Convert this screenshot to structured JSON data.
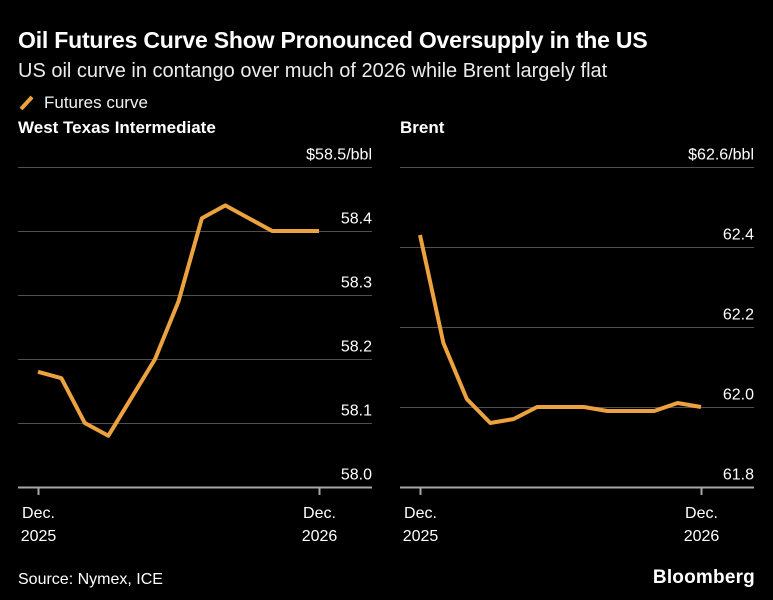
{
  "header": {
    "title": "Oil Futures Curve Show Pronounced Oversupply in the US",
    "subtitle": "US oil curve in contango over much of 2026 while Brent largely flat"
  },
  "legend": {
    "label": "Futures curve"
  },
  "footer": {
    "source": "Source: Nymex, ICE",
    "brand": "Bloomberg"
  },
  "colors": {
    "background": "#000000",
    "accent_orange": "#ECA23E",
    "gridline": "#4f4f4f",
    "axis_line": "#a8a8a8",
    "label_text": "#ffffff"
  },
  "chart_data": [
    {
      "type": "line",
      "title": "West Texas Intermediate",
      "unit_label": "$58.5/bbl",
      "ylim": [
        58.0,
        58.5
      ],
      "grid": "horizontal-only",
      "yticks": [
        {
          "value": 58.5,
          "label": "$58.5/bbl"
        },
        {
          "value": 58.4,
          "label": "58.4"
        },
        {
          "value": 58.3,
          "label": "58.3"
        },
        {
          "value": 58.2,
          "label": "58.2"
        },
        {
          "value": 58.1,
          "label": "58.1"
        },
        {
          "value": 58.0,
          "label": "58.0"
        }
      ],
      "x_ticks": [
        {
          "month_index": 0,
          "label_lines": [
            "Dec.",
            "2025"
          ]
        },
        {
          "month_index": 12,
          "label_lines": [
            "Dec.",
            "2026"
          ]
        }
      ],
      "series": [
        {
          "name": "Futures curve",
          "values": [
            58.18,
            58.17,
            58.1,
            58.08,
            58.14,
            58.2,
            58.29,
            58.42,
            58.44,
            58.42,
            58.4,
            58.4,
            58.4
          ]
        }
      ]
    },
    {
      "type": "line",
      "title": "Brent",
      "unit_label": "$62.6/bbl",
      "ylim": [
        61.8,
        62.6
      ],
      "grid": "horizontal-only",
      "yticks": [
        {
          "value": 62.6,
          "label": "$62.6/bbl"
        },
        {
          "value": 62.4,
          "label": "62.4"
        },
        {
          "value": 62.2,
          "label": "62.2"
        },
        {
          "value": 62.0,
          "label": "62.0"
        },
        {
          "value": 61.8,
          "label": "61.8"
        }
      ],
      "x_ticks": [
        {
          "month_index": 0,
          "label_lines": [
            "Dec.",
            "2025"
          ]
        },
        {
          "month_index": 12,
          "label_lines": [
            "Dec.",
            "2026"
          ]
        }
      ],
      "series": [
        {
          "name": "Futures curve",
          "values": [
            62.43,
            62.16,
            62.02,
            61.96,
            61.97,
            62.0,
            62.0,
            62.0,
            61.99,
            61.99,
            61.99,
            62.01,
            62.0
          ]
        }
      ]
    }
  ]
}
